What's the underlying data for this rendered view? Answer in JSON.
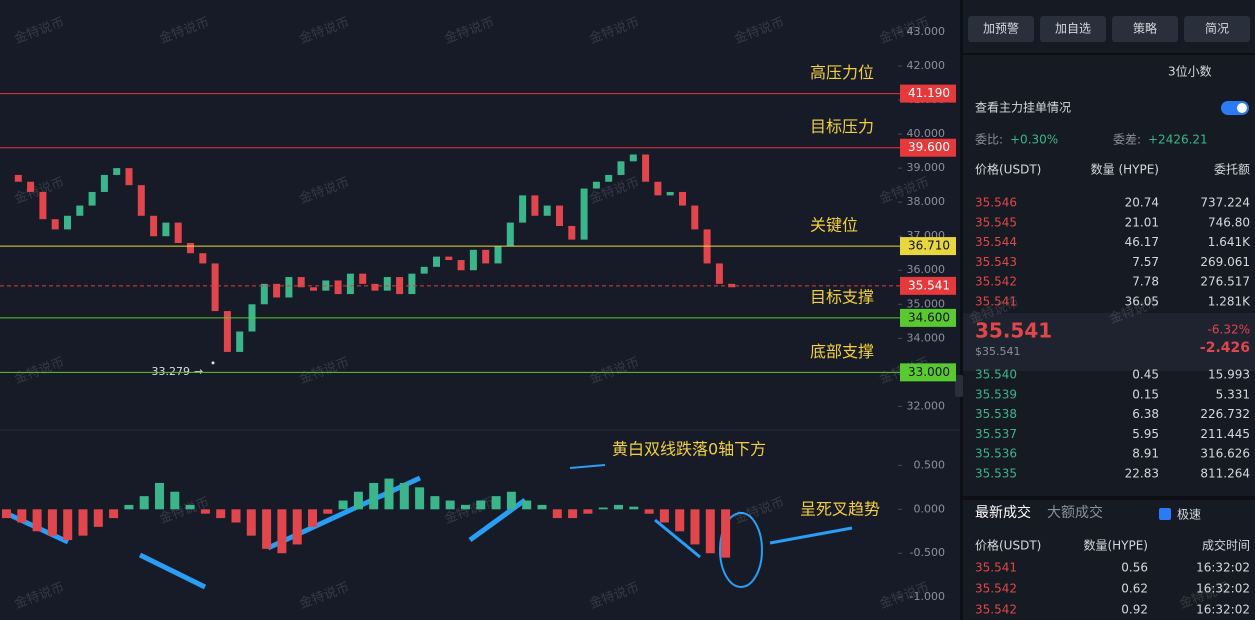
{
  "watermark": "金特说币",
  "chart": {
    "price_axis": {
      "ylim": [
        31.6,
        43.94
      ],
      "ticks": [
        {
          "value": 43,
          "label": "43.000"
        },
        {
          "value": 42,
          "label": "42.000"
        },
        {
          "value": 41,
          "label": "41.000"
        },
        {
          "value": 40,
          "label": "40.000"
        },
        {
          "value": 39,
          "label": "39.000"
        },
        {
          "value": 38,
          "label": "38.000"
        },
        {
          "value": 37,
          "label": "37.000"
        },
        {
          "value": 36,
          "label": "36.000"
        },
        {
          "value": 35,
          "label": "35.000"
        },
        {
          "value": 34,
          "label": "34.000"
        },
        {
          "value": 33,
          "label": "33.000"
        },
        {
          "value": 32,
          "label": "32.000"
        }
      ]
    },
    "levels": [
      {
        "name": "高压力位",
        "value": 41.19,
        "label": "41.190",
        "color": "#e5393b"
      },
      {
        "name": "目标压力",
        "value": 39.6,
        "label": "39.600",
        "color": "#e5393b"
      },
      {
        "name": "关键位",
        "value": 36.71,
        "label": "36.710",
        "color": "#e8d63f"
      },
      {
        "value": 35.541,
        "label": "35.541",
        "color": "#e5393b",
        "style": "dashed"
      },
      {
        "name": "目标支撑",
        "value": 34.6,
        "label": "34.600",
        "color": "#58c92f"
      },
      {
        "name": "底部支撑",
        "value": 33,
        "label": "33.000",
        "color": "#58c92f"
      }
    ],
    "low_marker": {
      "value": 33.279,
      "label": "33.279"
    },
    "closes": [
      38.8,
      38.6,
      38.3,
      37.5,
      37.2,
      37.6,
      37.9,
      38.3,
      38.8,
      39.0,
      38.5,
      37.6,
      37.0,
      37.4,
      36.8,
      36.5,
      36.2,
      34.8,
      33.6,
      34.2,
      35.0,
      35.6,
      35.2,
      35.8,
      35.5,
      35.4,
      35.7,
      35.3,
      35.9,
      35.6,
      35.4,
      35.8,
      35.3,
      35.9,
      36.1,
      36.4,
      36.3,
      36.0,
      36.6,
      36.2,
      36.7,
      37.4,
      38.2,
      37.6,
      37.9,
      37.3,
      36.9,
      38.4,
      38.6,
      38.8,
      39.2,
      39.4,
      38.6,
      38.2,
      38.3,
      37.9,
      37.2,
      36.2,
      35.6,
      35.5
    ],
    "macd_axis": {
      "ylim": [
        -1.26,
        0.88
      ],
      "ticks": [
        {
          "value": 0.5,
          "label": "0.500"
        },
        {
          "value": 0,
          "label": "0.000"
        },
        {
          "value": -0.5,
          "label": "-0.500"
        },
        {
          "value": -1,
          "label": "-1.000"
        }
      ]
    },
    "macd_hist": [
      -0.1,
      -0.15,
      -0.25,
      -0.3,
      -0.35,
      -0.3,
      -0.2,
      -0.1,
      0.05,
      0.15,
      0.3,
      0.2,
      0.05,
      -0.05,
      -0.1,
      -0.15,
      -0.3,
      -0.45,
      -0.5,
      -0.4,
      -0.2,
      -0.05,
      0.1,
      0.2,
      0.3,
      0.35,
      0.3,
      0.25,
      0.15,
      0.1,
      0.05,
      0.1,
      0.15,
      0.2,
      0.1,
      0.05,
      -0.1,
      -0.1,
      -0.05,
      0.02,
      0.05,
      0.03,
      -0.05,
      -0.15,
      -0.25,
      -0.4,
      -0.5,
      -0.55
    ],
    "annotations": [
      "黄白双线跌落0轴下方",
      "呈死叉趋势"
    ]
  },
  "panel": {
    "top_buttons": [
      "加预警",
      "加自选",
      "策略",
      "简况"
    ],
    "decimal_select": "3位小数",
    "main_order_toggle": "查看主力挂单情况",
    "weibi_label": "委比:",
    "weibi_value": "+0.30%",
    "weicha_label": "委差:",
    "weicha_value": "+2426.21",
    "book_headers": [
      "价格(USDT)",
      "数量 (HYPE)",
      "委托额"
    ],
    "asks": [
      [
        "35.546",
        "20.74",
        "737.224"
      ],
      [
        "35.545",
        "21.01",
        "746.80"
      ],
      [
        "35.544",
        "46.17",
        "1.641K"
      ],
      [
        "35.543",
        "7.57",
        "269.061"
      ],
      [
        "35.542",
        "7.78",
        "276.517"
      ],
      [
        "35.541",
        "36.05",
        "1.281K"
      ]
    ],
    "last_price": "35.541",
    "last_price_usd": "$35.541",
    "change_pct": "-6.32%",
    "change": "-2.426",
    "bids": [
      [
        "35.540",
        "0.45",
        "15.993"
      ],
      [
        "35.539",
        "0.15",
        "5.331"
      ],
      [
        "35.538",
        "6.38",
        "226.732"
      ],
      [
        "35.537",
        "5.95",
        "211.445"
      ],
      [
        "35.536",
        "8.91",
        "316.626"
      ],
      [
        "35.535",
        "22.83",
        "811.264"
      ]
    ],
    "trade_tabs": [
      "最新成交",
      "大额成交"
    ],
    "speed": "极速",
    "trade_headers": [
      "价格(USDT)",
      "数量(HYPE)",
      "成交时间"
    ],
    "trades": [
      [
        "35.541",
        "0.56",
        "16:32:02"
      ],
      [
        "35.542",
        "0.62",
        "16:32:02"
      ],
      [
        "35.542",
        "0.92",
        "16:32:02"
      ]
    ]
  }
}
